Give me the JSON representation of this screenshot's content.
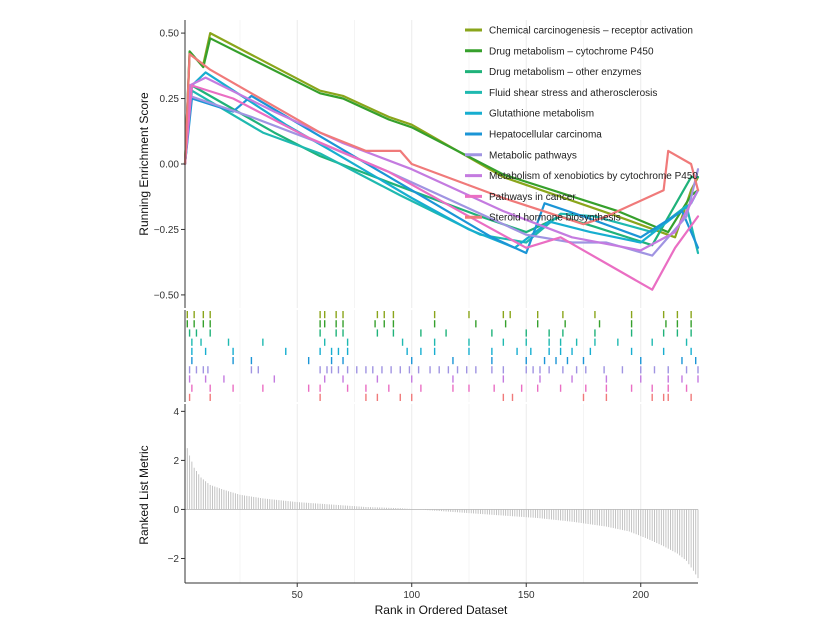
{
  "chart_data": {
    "type": "line",
    "panels": [
      "running_enrichment_score",
      "gene_hits",
      "ranked_list_metric"
    ],
    "xlabel": "Rank in Ordered Dataset",
    "xlim": [
      1,
      225
    ],
    "x_ticks": [
      50,
      100,
      150,
      200
    ],
    "es_panel": {
      "ylabel": "Running Enrichment Score",
      "ylim": [
        -0.55,
        0.55
      ],
      "y_ticks": [
        -0.5,
        -0.25,
        0.0,
        0.25,
        0.5
      ],
      "y_tick_labels": [
        "−0.50",
        "−0.25",
        "0.00",
        "0.25",
        "0.50"
      ]
    },
    "metric_panel": {
      "ylabel": "Ranked List Metric",
      "ylim": [
        -3.0,
        4.3
      ],
      "y_ticks": [
        -2,
        0,
        2,
        4
      ],
      "y_tick_labels": [
        "−2",
        "0",
        "2",
        "4"
      ],
      "x_tick_labels": [
        "50",
        "100",
        "150",
        "200"
      ],
      "metric_curve": [
        [
          1,
          3.3
        ],
        [
          2,
          2.5
        ],
        [
          3,
          2.2
        ],
        [
          5,
          1.7
        ],
        [
          8,
          1.3
        ],
        [
          12,
          1.0
        ],
        [
          18,
          0.8
        ],
        [
          25,
          0.6
        ],
        [
          35,
          0.45
        ],
        [
          50,
          0.3
        ],
        [
          65,
          0.2
        ],
        [
          80,
          0.1
        ],
        [
          95,
          0.05
        ],
        [
          110,
          -0.05
        ],
        [
          125,
          -0.15
        ],
        [
          140,
          -0.25
        ],
        [
          155,
          -0.35
        ],
        [
          170,
          -0.5
        ],
        [
          185,
          -0.7
        ],
        [
          195,
          -0.9
        ],
        [
          203,
          -1.2
        ],
        [
          210,
          -1.5
        ],
        [
          216,
          -1.8
        ],
        [
          220,
          -2.1
        ],
        [
          223,
          -2.5
        ],
        [
          225,
          -2.8
        ]
      ]
    },
    "legend_position": "top-right",
    "grid": "vertical",
    "series": [
      {
        "name": "Chemical carcinogenesis – receptor activation",
        "color": "#8aa51b",
        "points": [
          [
            1,
            0.0
          ],
          [
            3,
            0.42
          ],
          [
            9,
            0.38
          ],
          [
            12,
            0.5
          ],
          [
            60,
            0.28
          ],
          [
            70,
            0.26
          ],
          [
            90,
            0.18
          ],
          [
            100,
            0.15
          ],
          [
            140,
            -0.05
          ],
          [
            190,
            -0.2
          ],
          [
            215,
            -0.28
          ],
          [
            222,
            -0.1
          ],
          [
            225,
            -0.05
          ]
        ],
        "hits": [
          2,
          5,
          9,
          12,
          60,
          62,
          67,
          70,
          85,
          88,
          92,
          110,
          125,
          140,
          143,
          155,
          166,
          180,
          196,
          210,
          216,
          222
        ]
      },
      {
        "name": "Drug metabolism – cytochrome P450",
        "color": "#36a02c",
        "points": [
          [
            1,
            0.0
          ],
          [
            3,
            0.43
          ],
          [
            9,
            0.37
          ],
          [
            12,
            0.48
          ],
          [
            60,
            0.27
          ],
          [
            70,
            0.25
          ],
          [
            90,
            0.17
          ],
          [
            100,
            0.14
          ],
          [
            140,
            -0.04
          ],
          [
            190,
            -0.18
          ],
          [
            212,
            -0.26
          ],
          [
            222,
            -0.12
          ],
          [
            225,
            -0.1
          ]
        ],
        "hits": [
          2,
          5,
          9,
          12,
          60,
          62,
          67,
          70,
          84,
          88,
          92,
          110,
          128,
          141,
          155,
          167,
          182,
          196,
          211,
          216,
          222
        ]
      },
      {
        "name": "Drug metabolism – other enzymes",
        "color": "#1fb27a",
        "points": [
          [
            1,
            0.0
          ],
          [
            4,
            0.3
          ],
          [
            40,
            0.12
          ],
          [
            60,
            0.03
          ],
          [
            90,
            -0.07
          ],
          [
            130,
            -0.2
          ],
          [
            150,
            -0.26
          ],
          [
            165,
            -0.2
          ],
          [
            180,
            -0.24
          ],
          [
            205,
            -0.31
          ],
          [
            222,
            -0.05
          ],
          [
            225,
            -0.05
          ]
        ],
        "hits": [
          3,
          6,
          12,
          60,
          67,
          70,
          85,
          92,
          104,
          115,
          135,
          150,
          160,
          166,
          180,
          196,
          210,
          216,
          222
        ]
      },
      {
        "name": "Fluid shear stress and atherosclerosis",
        "color": "#1fb9b0",
        "points": [
          [
            1,
            0.0
          ],
          [
            4,
            0.28
          ],
          [
            35,
            0.12
          ],
          [
            60,
            0.04
          ],
          [
            95,
            -0.12
          ],
          [
            130,
            -0.27
          ],
          [
            150,
            -0.3
          ],
          [
            165,
            -0.19
          ],
          [
            180,
            -0.2
          ],
          [
            205,
            -0.26
          ],
          [
            220,
            -0.16
          ],
          [
            225,
            -0.34
          ]
        ],
        "hits": [
          4,
          8,
          20,
          35,
          62,
          72,
          96,
          110,
          125,
          140,
          150,
          160,
          165,
          172,
          180,
          190,
          205,
          220
        ]
      },
      {
        "name": "Glutathione metabolism",
        "color": "#17aed0",
        "points": [
          [
            1,
            0.0
          ],
          [
            4,
            0.3
          ],
          [
            10,
            0.35
          ],
          [
            45,
            0.15
          ],
          [
            65,
            0.05
          ],
          [
            100,
            -0.13
          ],
          [
            125,
            -0.25
          ],
          [
            145,
            -0.32
          ],
          [
            160,
            -0.22
          ],
          [
            178,
            -0.26
          ],
          [
            200,
            -0.3
          ],
          [
            222,
            -0.15
          ],
          [
            225,
            -0.1
          ]
        ],
        "hits": [
          4,
          10,
          22,
          45,
          60,
          65,
          68,
          72,
          98,
          104,
          110,
          125,
          135,
          146,
          152,
          160,
          165,
          170,
          178,
          196,
          210,
          222
        ]
      },
      {
        "name": "Hepatocellular carcinoma",
        "color": "#1b95d6",
        "points": [
          [
            1,
            0.0
          ],
          [
            4,
            0.25
          ],
          [
            22,
            0.2
          ],
          [
            30,
            0.26
          ],
          [
            65,
            0.08
          ],
          [
            100,
            -0.1
          ],
          [
            135,
            -0.28
          ],
          [
            150,
            -0.34
          ],
          [
            158,
            -0.15
          ],
          [
            175,
            -0.2
          ],
          [
            200,
            -0.28
          ],
          [
            218,
            -0.18
          ],
          [
            225,
            -0.32
          ]
        ],
        "hits": [
          4,
          22,
          30,
          55,
          65,
          70,
          100,
          118,
          135,
          150,
          158,
          163,
          168,
          175,
          200,
          218,
          224
        ]
      },
      {
        "name": "Metabolic pathways",
        "color": "#a094e2",
        "points": [
          [
            1,
            0.0
          ],
          [
            3,
            0.26
          ],
          [
            30,
            0.18
          ],
          [
            60,
            0.08
          ],
          [
            90,
            -0.03
          ],
          [
            125,
            -0.17
          ],
          [
            150,
            -0.27
          ],
          [
            170,
            -0.3
          ],
          [
            185,
            -0.3
          ],
          [
            205,
            -0.35
          ],
          [
            220,
            -0.2
          ],
          [
            225,
            -0.02
          ]
        ],
        "hits": [
          3,
          6,
          9,
          11,
          30,
          33,
          60,
          63,
          65,
          68,
          72,
          76,
          80,
          83,
          87,
          91,
          95,
          99,
          103,
          108,
          112,
          116,
          120,
          124,
          128,
          135,
          140,
          150,
          153,
          156,
          160,
          166,
          172,
          176,
          184,
          192,
          200,
          206,
          212,
          220,
          225
        ]
      },
      {
        "name": "Metabolism of xenobiotics by cytochrome P450",
        "color": "#c47be0",
        "points": [
          [
            1,
            0.0
          ],
          [
            3,
            0.3
          ],
          [
            10,
            0.33
          ],
          [
            40,
            0.2
          ],
          [
            70,
            0.08
          ],
          [
            100,
            -0.02
          ],
          [
            140,
            -0.18
          ],
          [
            170,
            -0.28
          ],
          [
            200,
            -0.33
          ],
          [
            215,
            -0.26
          ],
          [
            225,
            -0.1
          ]
        ],
        "hits": [
          3,
          10,
          18,
          40,
          62,
          70,
          85,
          100,
          118,
          140,
          156,
          170,
          185,
          200,
          212,
          218,
          225
        ]
      },
      {
        "name": "Pathways in cancer",
        "color": "#ea6ec3",
        "points": [
          [
            1,
            0.0
          ],
          [
            4,
            0.3
          ],
          [
            22,
            0.25
          ],
          [
            55,
            0.1
          ],
          [
            90,
            -0.03
          ],
          [
            125,
            -0.2
          ],
          [
            150,
            -0.32
          ],
          [
            165,
            -0.28
          ],
          [
            185,
            -0.38
          ],
          [
            205,
            -0.48
          ],
          [
            215,
            -0.32
          ],
          [
            225,
            -0.2
          ]
        ],
        "hits": [
          4,
          12,
          22,
          35,
          55,
          60,
          72,
          80,
          90,
          104,
          118,
          125,
          136,
          148,
          155,
          165,
          176,
          185,
          196,
          205,
          212,
          220
        ]
      },
      {
        "name": "Steroid hormone biosynthesis",
        "color": "#f07a7a",
        "points": [
          [
            1,
            0.0
          ],
          [
            3,
            0.42
          ],
          [
            12,
            0.36
          ],
          [
            60,
            0.12
          ],
          [
            80,
            0.05
          ],
          [
            95,
            0.05
          ],
          [
            100,
            0.0
          ],
          [
            140,
            -0.13
          ],
          [
            175,
            -0.23
          ],
          [
            185,
            -0.2
          ],
          [
            210,
            -0.1
          ],
          [
            212,
            0.05
          ],
          [
            222,
            0.0
          ],
          [
            225,
            -0.1
          ]
        ],
        "hits": [
          3,
          12,
          60,
          80,
          85,
          95,
          100,
          140,
          144,
          175,
          185,
          205,
          210,
          212,
          222
        ]
      }
    ]
  }
}
